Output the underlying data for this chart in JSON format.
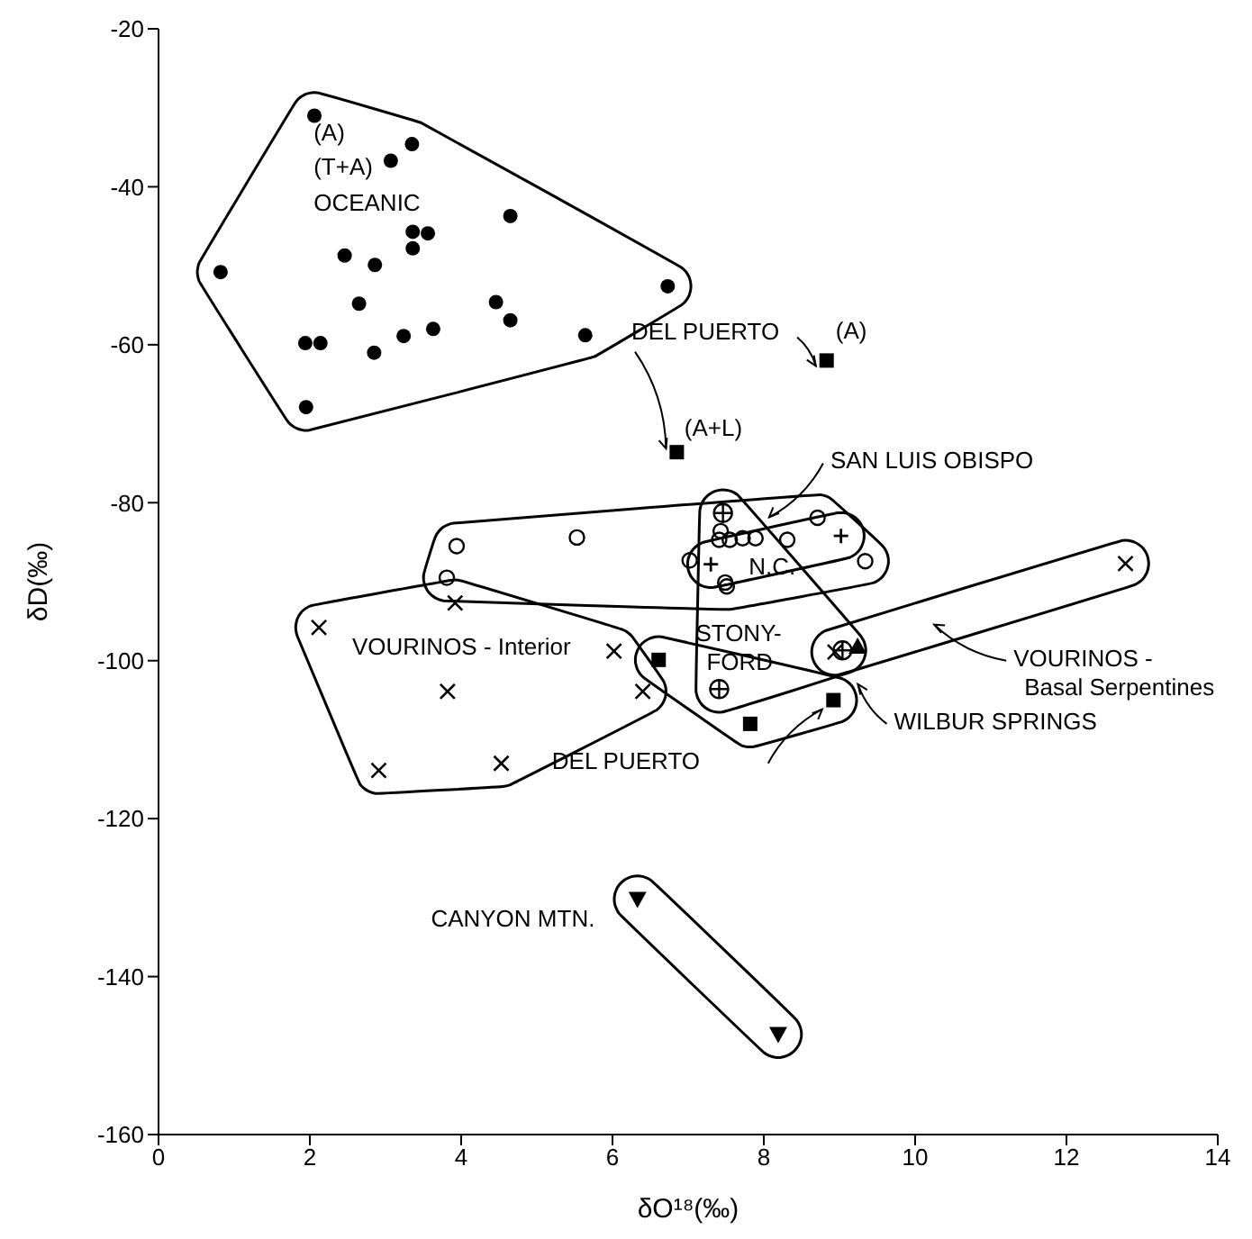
{
  "chart_data": {
    "type": "scatter",
    "xlabel": "δO¹⁸(‰)",
    "ylabel": "δD(‰)",
    "xlim": [
      0,
      14
    ],
    "ylim": [
      -160,
      -20
    ],
    "xticks": [
      0,
      2,
      4,
      6,
      8,
      10,
      12,
      14
    ],
    "yticks": [
      -160,
      -140,
      -120,
      -100,
      -80,
      -60,
      -40,
      -20
    ],
    "series": [
      {
        "color": "#000000",
        "marker": "circle",
        "x": [
          2.06,
          3.35,
          3.07,
          4.65,
          3.36,
          3.56,
          3.36,
          2.46,
          2.86,
          0.82,
          2.65,
          4.46,
          4.65,
          6.73,
          1.94,
          2.14,
          2.85,
          3.24,
          3.63,
          5.64,
          1.95
        ],
        "values": [
          -31,
          -34.6,
          -36.7,
          -43.7,
          -45.7,
          -45.9,
          -47.8,
          -48.7,
          -49.9,
          -50.8,
          -54.8,
          -54.6,
          -56.9,
          -52.6,
          -59.8,
          -59.8,
          -61,
          -58.9,
          -58,
          -58.8,
          -67.9
        ]
      },
      {
        "color": "#000000",
        "marker": "square",
        "x": [
          8.83,
          6.85
        ],
        "values": [
          -62,
          -73.6
        ]
      },
      {
        "color": "#000000",
        "marker": "circle-open",
        "x": [
          3.94,
          5.53,
          3.81,
          7.43,
          7.41,
          7.55,
          7.72,
          7.89,
          8.31,
          8.71,
          9.34,
          7.02,
          7.49,
          7.51
        ],
        "values": [
          -85.5,
          -84.4,
          -89.5,
          -83.6,
          -84.7,
          -84.7,
          -84.5,
          -84.5,
          -84.7,
          -81.9,
          -87.4,
          -87.3,
          -90.1,
          -90.6
        ]
      },
      {
        "color": "#000000",
        "marker": "plus",
        "x": [
          7.3,
          9.02
        ],
        "values": [
          -87.8,
          -84.2
        ]
      },
      {
        "color": "#000000",
        "marker": "circle-plus",
        "x": [
          7.46,
          7.41,
          9.04
        ],
        "values": [
          -81.3,
          -103.6,
          -98.7
        ]
      },
      {
        "color": "#000000",
        "marker": "cross",
        "x": [
          2.12,
          3.92,
          3.82,
          6.02,
          6.4,
          2.91,
          4.53
        ],
        "values": [
          -95.8,
          -92.7,
          -103.9,
          -98.8,
          -103.9,
          -113.9,
          -113
        ]
      },
      {
        "color": "#000000",
        "marker": "cross",
        "x": [
          12.78,
          8.94
        ],
        "values": [
          -87.7,
          -98.9
        ]
      },
      {
        "color": "#000000",
        "marker": "square",
        "x": [
          6.61,
          8.92,
          7.82
        ],
        "values": [
          -99.9,
          -105,
          -108
        ]
      },
      {
        "color": "#000000",
        "marker": "triangle",
        "x": [
          9.24
        ],
        "values": [
          -98.2
        ]
      },
      {
        "color": "#000000",
        "marker": "triangle-down",
        "x": [
          6.33,
          8.19
        ],
        "values": [
          -130.2,
          -147.3
        ]
      }
    ],
    "annotations": [
      "(A)",
      "(T+A)",
      "OCEANIC",
      {
        "text": "DEL PUERTO",
        "x": 6.85,
        "y": -73.6
      },
      "(A)",
      "(A+L)",
      "SAN LUIS OBISPO",
      "N.C.",
      "VOURINOS - Interior",
      "STONY-\nFORD",
      "VOURINOS -\nBasal Serpentines",
      "WILBUR SPRINGS",
      "DEL PUERTO",
      "CANYON MTN."
    ]
  }
}
